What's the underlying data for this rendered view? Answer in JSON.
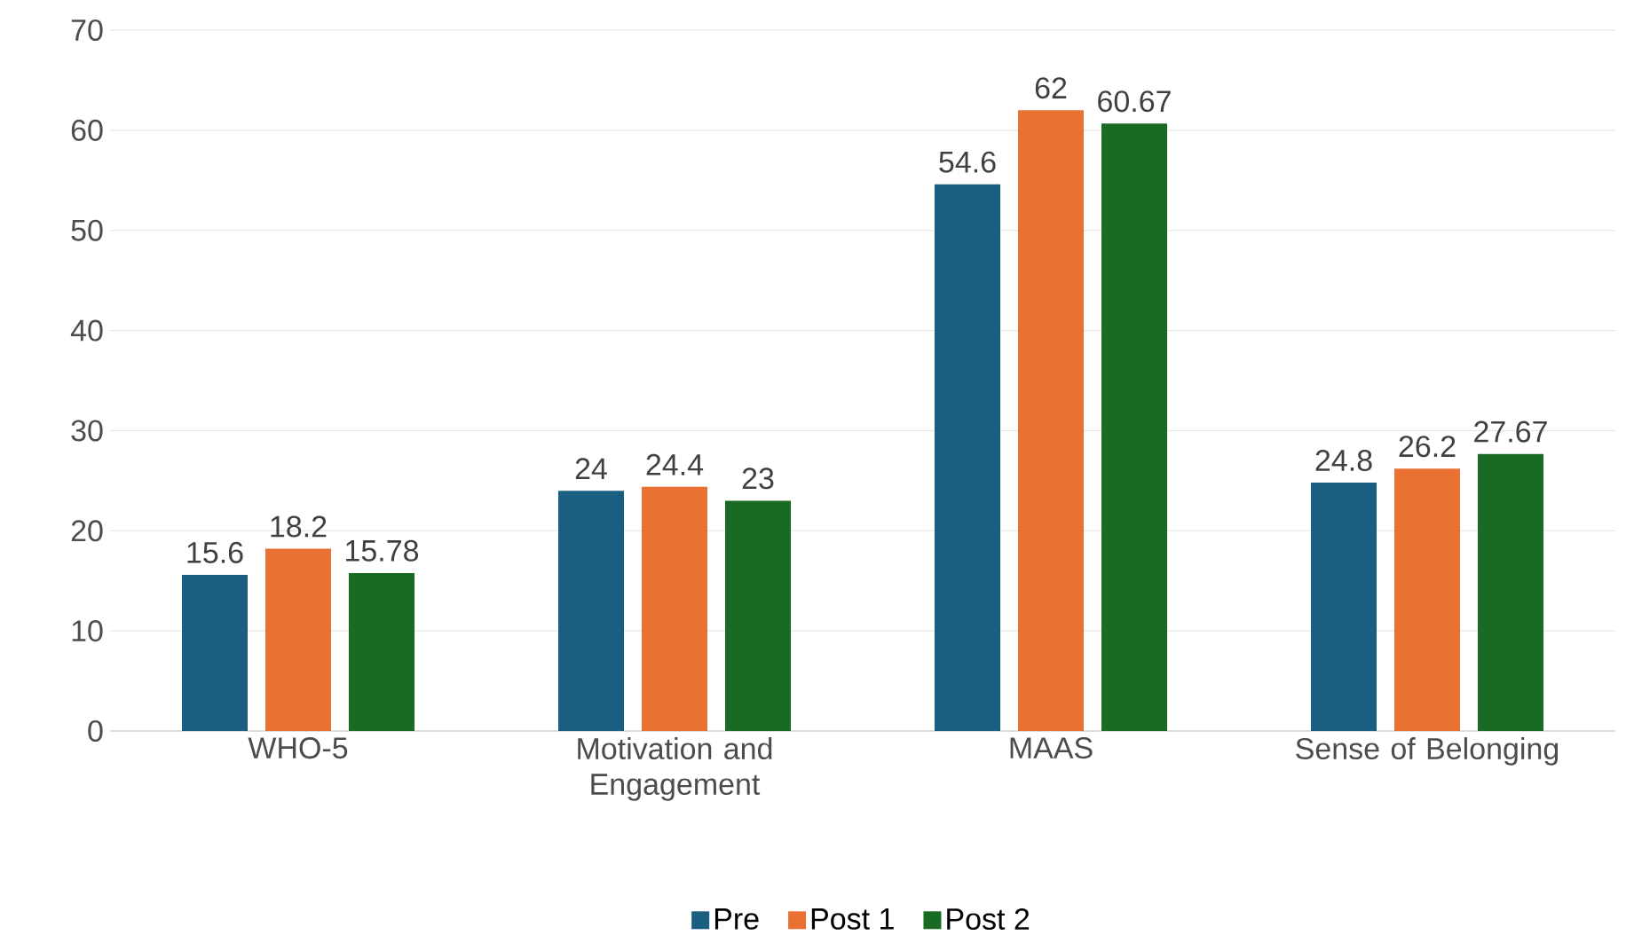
{
  "chart_data": {
    "type": "bar",
    "categories": [
      "WHO-5",
      "Motivation and Engagement",
      "MAAS",
      "Sense of Belonging"
    ],
    "series": [
      {
        "name": "Pre",
        "color": "#1a5e80",
        "values": [
          15.6,
          24,
          54.6,
          24.8
        ]
      },
      {
        "name": "Post 1",
        "color": "#e97132",
        "values": [
          18.2,
          24.4,
          62,
          26.2
        ]
      },
      {
        "name": "Post 2",
        "color": "#196b24",
        "values": [
          15.78,
          23,
          60.67,
          27.67
        ]
      }
    ],
    "ylim": [
      0,
      70
    ],
    "yticks": [
      0,
      10,
      20,
      30,
      40,
      50,
      60,
      70
    ],
    "grid": "y",
    "legend": "bottom",
    "data_labels": true
  }
}
